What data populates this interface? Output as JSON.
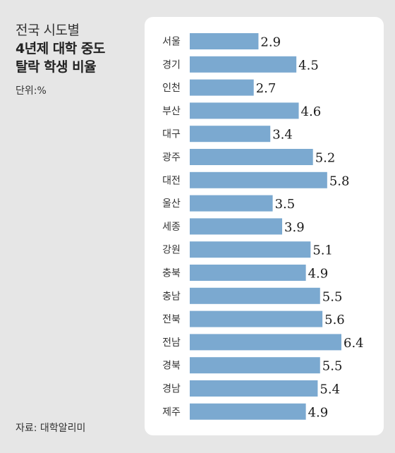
{
  "title": {
    "line1": "전국 시도별",
    "line2": "4년제 대학 중도",
    "line3": "탈락 학생 비율"
  },
  "unit_label": "단위:%",
  "source_label": "자료: 대학알리미",
  "colors": {
    "bar": "#7ba9d0",
    "background": "#e6e6e6",
    "panel": "#ffffff"
  },
  "chart_data": {
    "type": "bar",
    "orientation": "horizontal",
    "categories": [
      "서울",
      "경기",
      "인천",
      "부산",
      "대구",
      "광주",
      "대전",
      "울산",
      "세종",
      "강원",
      "충북",
      "충남",
      "전북",
      "전남",
      "경북",
      "경남",
      "제주"
    ],
    "values": [
      2.9,
      4.5,
      2.7,
      4.6,
      3.4,
      5.2,
      5.8,
      3.5,
      3.9,
      5.1,
      4.9,
      5.5,
      5.6,
      6.4,
      5.5,
      5.4,
      4.9
    ],
    "value_labels": [
      "2.9",
      "4.5",
      "2.7",
      "4.6",
      "3.4",
      "5.2",
      "5.8",
      "3.5",
      "3.9",
      "5.1",
      "4.9",
      "5.5",
      "5.6",
      "6.4",
      "5.5",
      "5.4",
      "4.9"
    ],
    "xlim": [
      0,
      6.4
    ],
    "grid": false,
    "legend": "none"
  }
}
